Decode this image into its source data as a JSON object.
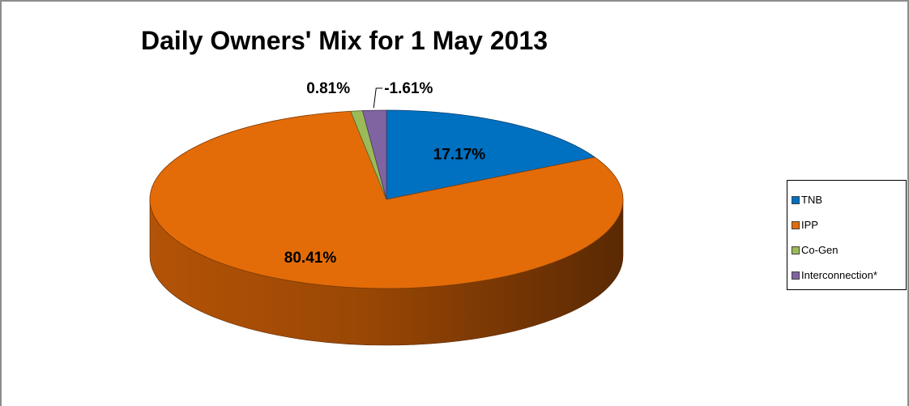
{
  "chart_data": {
    "type": "pie",
    "title": "Daily Owners' Mix for 1 May 2013",
    "three_d": true,
    "legend_position": "right",
    "slices": [
      {
        "name": "TNB",
        "value": 17.17,
        "label": "17.17%",
        "color": "#0070C0"
      },
      {
        "name": "IPP",
        "value": 80.41,
        "label": "80.41%",
        "color": "#E36C09"
      },
      {
        "name": "Co-Gen",
        "value": 0.81,
        "label": "0.81%",
        "color": "#9BBB59"
      },
      {
        "name": "Interconnection*",
        "value": 1.61,
        "label": "-1.61%",
        "color": "#8064A2"
      }
    ]
  }
}
